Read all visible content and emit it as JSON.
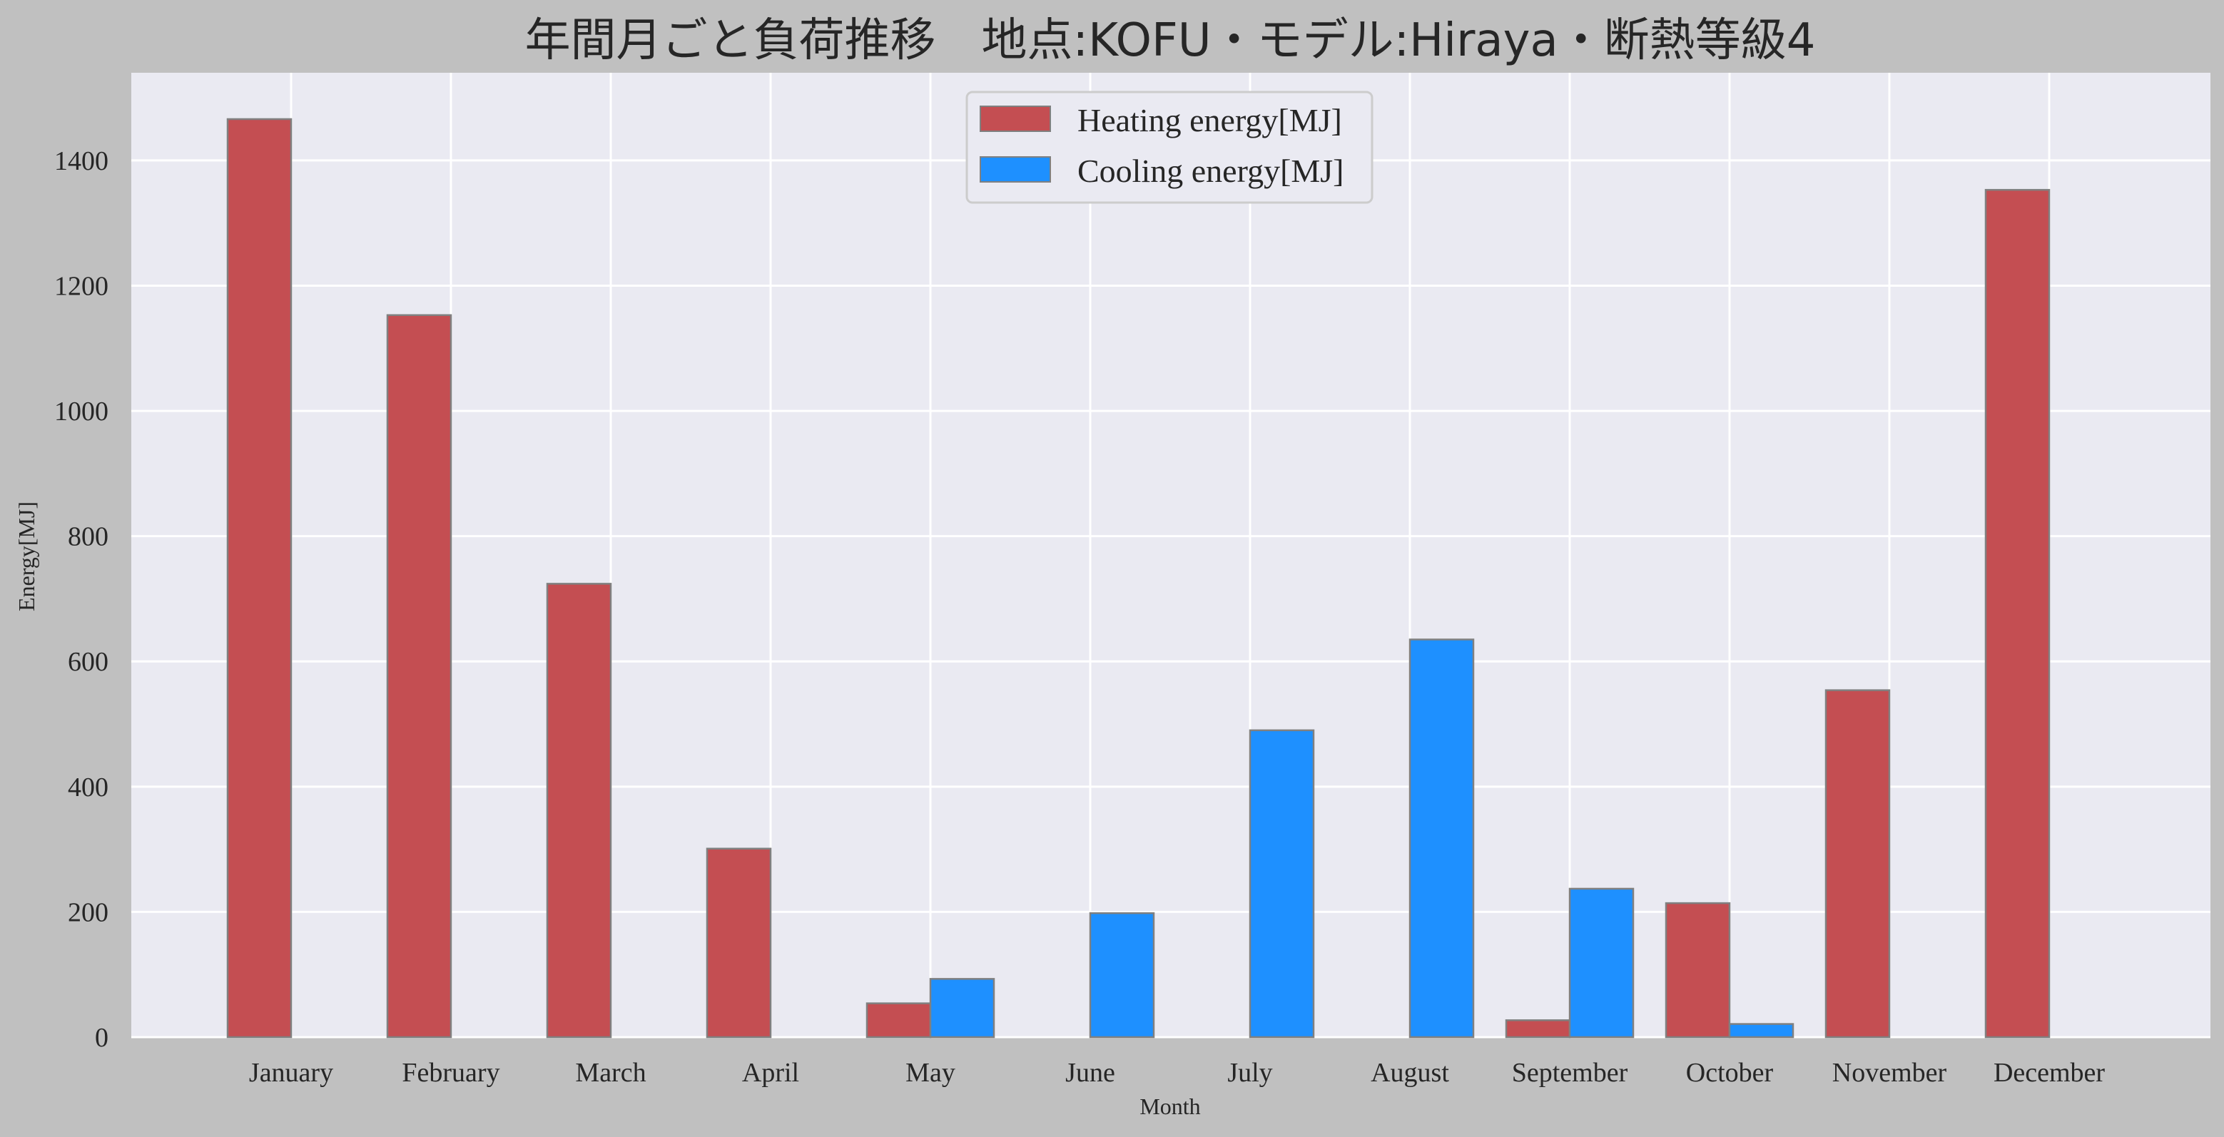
{
  "chart_data": {
    "type": "bar",
    "title": "年間月ごと負荷推移　地点:KOFU・モデル:Hiraya・断熱等級4",
    "xlabel": "Month",
    "ylabel": "Energy[MJ]",
    "ylim": [
      0,
      1540
    ],
    "yticks": [
      0,
      200,
      400,
      600,
      800,
      1000,
      1200,
      1400
    ],
    "grid": true,
    "legend_position": "top-center",
    "categories": [
      "January",
      "February",
      "March",
      "April",
      "May",
      "June",
      "July",
      "August",
      "September",
      "October",
      "November",
      "December"
    ],
    "series": [
      {
        "name": "Heating energy[MJ]",
        "color": "#c44e52",
        "values": [
          1466,
          1153,
          724,
          301,
          54,
          0,
          0,
          0,
          27,
          214,
          554,
          1353
        ]
      },
      {
        "name": "Cooling energy[MJ]",
        "color": "#1e90ff",
        "values": [
          0,
          0,
          0,
          0,
          93,
          198,
          490,
          635,
          237,
          21,
          0,
          0
        ]
      }
    ]
  }
}
